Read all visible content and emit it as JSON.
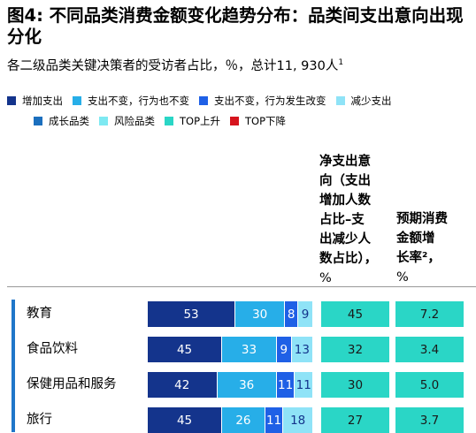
{
  "title": "图4: 不同品类消费金额变化趋势分布：品类间支出意向出现分化",
  "subtitle": "各二级品类关键决策者的受访者占比，％，总计11, 930人",
  "subtitle_sup": "1",
  "colors": {
    "increase": "#14348c",
    "same_same": "#27aee8",
    "same_change": "#1f60e6",
    "decrease": "#8fe3f7",
    "growth": "#1b6fbe",
    "risk": "#7ee9f2",
    "top_up": "#2ad6c6",
    "top_down": "#d6141d",
    "side_bar": "#1f76c9"
  },
  "legend": {
    "row1": [
      {
        "label": "增加支出",
        "color_key": "increase"
      },
      {
        "label": "支出不变，行为也不变",
        "color_key": "same_same"
      },
      {
        "label": "支出不变，行为发生改变",
        "color_key": "same_change"
      },
      {
        "label": "减少支出",
        "color_key": "decrease"
      }
    ],
    "row2": [
      {
        "label": "成长品类",
        "color_key": "growth"
      },
      {
        "label": "风险品类",
        "color_key": "risk"
      },
      {
        "label": "TOP上升",
        "color_key": "top_up"
      },
      {
        "label": "TOP下降",
        "color_key": "top_down"
      }
    ]
  },
  "columns": {
    "net": {
      "lines": [
        "净支出意",
        "向（支出",
        "增加人数",
        "占比–支",
        "出减少人",
        "数占比），"
      ],
      "unit": "%"
    },
    "growth": {
      "lines": [
        "预期消费",
        "金额增",
        "长率²，"
      ],
      "unit": "%"
    }
  },
  "chart_data": {
    "type": "bar",
    "orientation": "horizontal",
    "stacked": true,
    "categories": [
      "教育",
      "食品饮料",
      "保健用品和服务",
      "旅行"
    ],
    "series": [
      {
        "name": "增加支出",
        "values": [
          53,
          45,
          42,
          45
        ]
      },
      {
        "name": "支出不变，行为也不变",
        "values": [
          30,
          33,
          36,
          26
        ]
      },
      {
        "name": "支出不变，行为发生改变",
        "values": [
          8,
          9,
          11,
          11
        ]
      },
      {
        "name": "减少支出",
        "values": [
          9,
          13,
          11,
          18
        ]
      }
    ],
    "net_intent": [
      45,
      32,
      30,
      27
    ],
    "expected_growth": [
      "7.2",
      "3.4",
      "5.0",
      "3.7"
    ]
  }
}
